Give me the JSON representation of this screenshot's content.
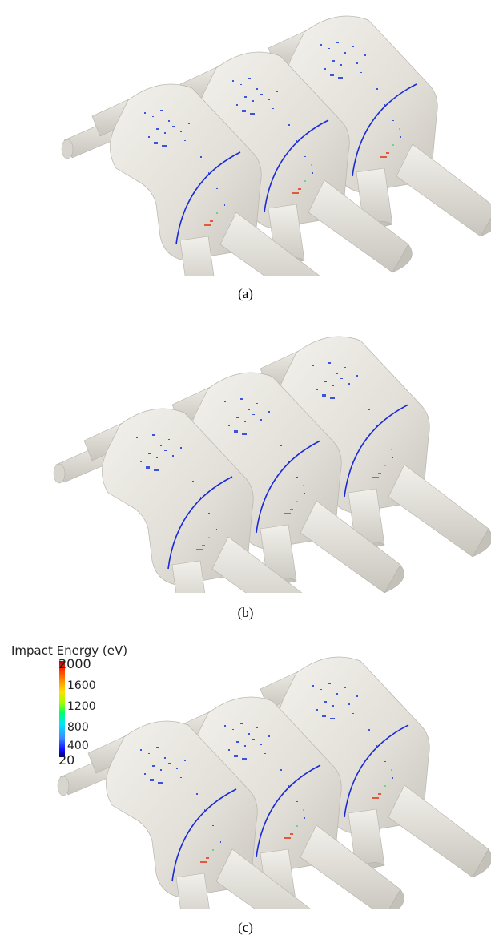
{
  "figure": {
    "captions": [
      "(a)",
      "(b)",
      "(c)"
    ],
    "legend": {
      "title": "Impact Energy (eV)",
      "ticks": [
        "2000",
        "1600",
        "1200",
        "800",
        "400",
        "20"
      ],
      "colors": [
        "#b40000",
        "#ff8c00",
        "#ffe000",
        "#00ff6a",
        "#00e4ff",
        "#1010ff"
      ]
    },
    "body_color": "#e6e3dc"
  }
}
